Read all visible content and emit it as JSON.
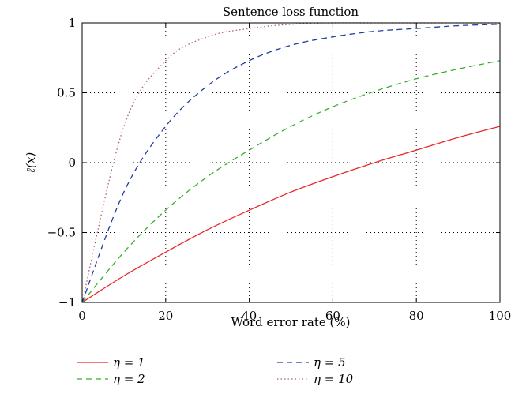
{
  "chart_data": {
    "type": "line",
    "title": "Sentence loss function",
    "xlabel": "Word error rate (%)",
    "ylabel": "ℓ(x)",
    "xlim": [
      0,
      100
    ],
    "ylim": [
      -1,
      1
    ],
    "xticks": [
      "0",
      "20",
      "40",
      "60",
      "80",
      "100"
    ],
    "yticks": [
      "−1",
      "−0.5",
      "0",
      "0.5",
      "1"
    ],
    "grid": true,
    "legend_position": "bottom",
    "x": [
      0,
      10,
      20,
      30,
      40,
      50,
      60,
      70,
      80,
      90,
      100
    ],
    "series": [
      {
        "name": "η = 1",
        "color": "#e8282b",
        "dash": "solid",
        "values": [
          -1.0,
          -0.81,
          -0.64,
          -0.48,
          -0.34,
          -0.21,
          -0.1,
          0.0,
          0.09,
          0.18,
          0.26
        ]
      },
      {
        "name": "η = 2",
        "color": "#3aad2e",
        "dash": "dashed",
        "values": [
          -1.0,
          -0.64,
          -0.34,
          -0.1,
          0.09,
          0.26,
          0.4,
          0.51,
          0.6,
          0.67,
          0.73
        ]
      },
      {
        "name": "η = 5",
        "color": "#1f3f9e",
        "dash": "dashed",
        "values": [
          -1.0,
          -0.21,
          0.26,
          0.55,
          0.73,
          0.84,
          0.9,
          0.94,
          0.96,
          0.98,
          0.99
        ]
      },
      {
        "name": "η = 10",
        "color": "#b05a7a",
        "dash": "dotted",
        "values": [
          -1.0,
          0.26,
          0.73,
          0.9,
          0.96,
          0.99,
          1.0,
          1.0,
          1.0,
          1.0,
          1.0
        ]
      }
    ]
  }
}
